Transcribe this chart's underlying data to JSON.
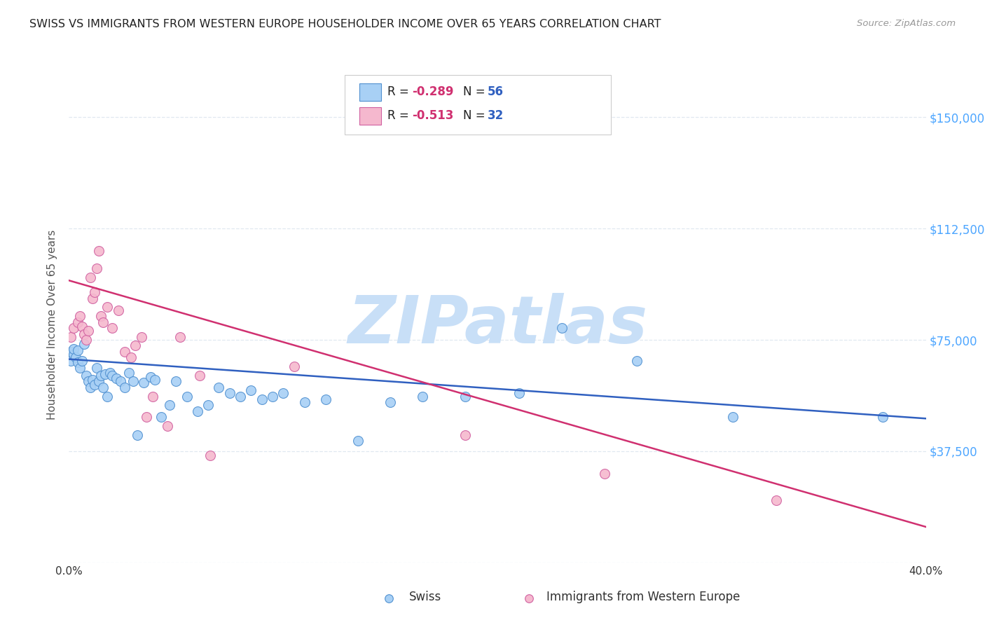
{
  "title": "SWISS VS IMMIGRANTS FROM WESTERN EUROPE HOUSEHOLDER INCOME OVER 65 YEARS CORRELATION CHART",
  "source": "Source: ZipAtlas.com",
  "ylabel": "Householder Income Over 65 years",
  "xmin": 0.0,
  "xmax": 0.4,
  "ymin": 0,
  "ymax": 160000,
  "yticks": [
    0,
    37500,
    75000,
    112500,
    150000
  ],
  "ytick_labels": [
    "",
    "$37,500",
    "$75,000",
    "$112,500",
    "$150,000"
  ],
  "xticks": [
    0.0,
    0.05,
    0.1,
    0.15,
    0.2,
    0.25,
    0.3,
    0.35,
    0.4
  ],
  "xtick_labels": [
    "0.0%",
    "",
    "",
    "",
    "",
    "",
    "",
    "",
    "40.0%"
  ],
  "swiss_color": "#a8d0f5",
  "immigrant_color": "#f5b8ce",
  "swiss_edge_color": "#5090d0",
  "immigrant_edge_color": "#d060a0",
  "blue_line_color": "#3060c0",
  "pink_line_color": "#d03070",
  "legend_R_swiss": "-0.289",
  "legend_N_swiss": "56",
  "legend_R_immigrant": "-0.513",
  "legend_N_immigrant": "32",
  "swiss_x": [
    0.001,
    0.001,
    0.002,
    0.002,
    0.003,
    0.004,
    0.004,
    0.005,
    0.006,
    0.007,
    0.008,
    0.009,
    0.01,
    0.011,
    0.012,
    0.013,
    0.014,
    0.015,
    0.016,
    0.017,
    0.018,
    0.019,
    0.02,
    0.022,
    0.024,
    0.026,
    0.028,
    0.03,
    0.032,
    0.035,
    0.038,
    0.04,
    0.043,
    0.047,
    0.05,
    0.055,
    0.06,
    0.065,
    0.07,
    0.075,
    0.08,
    0.085,
    0.09,
    0.095,
    0.1,
    0.11,
    0.12,
    0.135,
    0.15,
    0.165,
    0.185,
    0.21,
    0.23,
    0.265,
    0.31,
    0.38
  ],
  "swiss_y": [
    68000,
    71000,
    70000,
    72000,
    69000,
    67500,
    71500,
    65500,
    68000,
    73500,
    63000,
    61000,
    59000,
    61500,
    60000,
    65500,
    61000,
    63000,
    59000,
    63500,
    56000,
    64000,
    63000,
    62000,
    61000,
    59000,
    64000,
    61000,
    43000,
    60500,
    62500,
    61500,
    49000,
    53000,
    61000,
    56000,
    51000,
    53000,
    59000,
    57000,
    56000,
    58000,
    55000,
    56000,
    57000,
    54000,
    55000,
    41000,
    54000,
    56000,
    56000,
    57000,
    79000,
    68000,
    49000,
    49000
  ],
  "immigrant_x": [
    0.001,
    0.002,
    0.004,
    0.005,
    0.006,
    0.007,
    0.008,
    0.009,
    0.01,
    0.011,
    0.012,
    0.013,
    0.014,
    0.015,
    0.016,
    0.018,
    0.02,
    0.023,
    0.026,
    0.029,
    0.031,
    0.034,
    0.036,
    0.039,
    0.046,
    0.052,
    0.061,
    0.066,
    0.105,
    0.185,
    0.25,
    0.33
  ],
  "immigrant_y": [
    76000,
    79000,
    81000,
    83000,
    79500,
    77000,
    75000,
    78000,
    96000,
    89000,
    91000,
    99000,
    105000,
    83000,
    81000,
    86000,
    79000,
    85000,
    71000,
    69000,
    73000,
    76000,
    49000,
    56000,
    46000,
    76000,
    63000,
    36000,
    66000,
    43000,
    30000,
    21000
  ],
  "blue_line_x0": 0.0,
  "blue_line_y0": 68500,
  "blue_line_x1": 0.4,
  "blue_line_y1": 48500,
  "pink_line_x0": 0.0,
  "pink_line_y0": 95000,
  "pink_line_x1": 0.4,
  "pink_line_y1": 12000,
  "watermark": "ZIPatlas",
  "watermark_color": "#c8dff7",
  "background_color": "#ffffff",
  "grid_color": "#e0e8f0",
  "title_color": "#222222",
  "axis_label_color": "#555555",
  "ytick_color": "#4da6ff",
  "marker_size": 100
}
